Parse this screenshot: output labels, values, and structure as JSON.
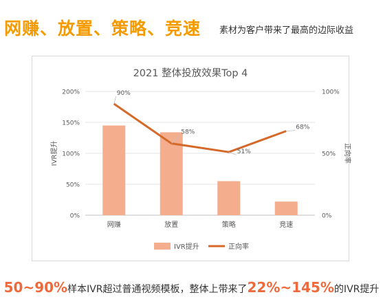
{
  "header": {
    "headline": "网赚、放置、策略、竞速",
    "subheadline": "素材为客户带来了最高的边际收益"
  },
  "colors": {
    "headline": "#F59A00",
    "bar": "#F4AD8D",
    "line": "#D4692A",
    "highlight": "#EE6A3C"
  },
  "chart_data": {
    "type": "bar",
    "title": "2021 整体投放效果Top 4",
    "categories": [
      "网赚",
      "放置",
      "策略",
      "竞速"
    ],
    "ylabel": "IVR提升",
    "y2label": "正向率",
    "ylim": [
      0,
      200
    ],
    "y2lim": [
      0,
      100
    ],
    "yticks": [
      "0%",
      "50%",
      "100%",
      "150%",
      "200%"
    ],
    "y2ticks": [
      "0%",
      "50%",
      "100%"
    ],
    "series": [
      {
        "name": "IVR提升",
        "type": "bar",
        "axis": "left",
        "values": [
          145,
          134,
          55,
          22
        ]
      },
      {
        "name": "正向率",
        "type": "line",
        "axis": "right",
        "values": [
          90,
          58,
          51,
          68
        ],
        "labels": [
          "90%",
          "58%",
          "51%",
          "68%"
        ]
      }
    ],
    "legend": "bottom",
    "grid": true
  },
  "footer": {
    "hl1": "50~90%",
    "text1": "样本IVR超过普通视频模板，整体上带来了",
    "hl2": "22%~145%",
    "text2": "的IVR提升"
  }
}
